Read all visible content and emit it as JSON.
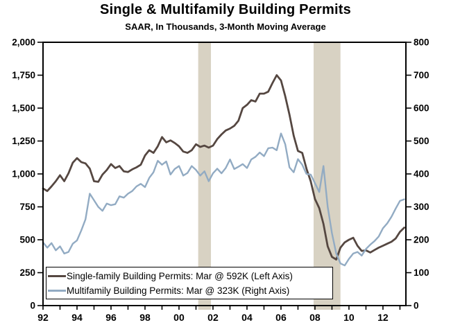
{
  "chart_data": {
    "type": "line",
    "title": "Single & Multifamily Building Permits",
    "subtitle": "SAAR, In Thousands, 3-Month Moving Average",
    "grid": false,
    "background": "#ffffff",
    "recession_band_color": "#d8d2c3",
    "recession_bands": [
      {
        "start": 2001.13,
        "end": 2001.88
      },
      {
        "start": 2007.92,
        "end": 2009.5
      }
    ],
    "x_range": [
      1992,
      2013.35
    ],
    "left_axis": {
      "min": 0,
      "max": 2000,
      "ticks": [
        {
          "v": 0,
          "label": "0"
        },
        {
          "v": 250,
          "label": "250"
        },
        {
          "v": 500,
          "label": "500"
        },
        {
          "v": 750,
          "label": "750"
        },
        {
          "v": 1000,
          "label": "1,000"
        },
        {
          "v": 1250,
          "label": "1,250"
        },
        {
          "v": 1500,
          "label": "1,500"
        },
        {
          "v": 1750,
          "label": "1,750"
        },
        {
          "v": 2000,
          "label": "2,000"
        }
      ]
    },
    "right_axis": {
      "min": 0,
      "max": 800,
      "ticks": [
        {
          "v": 0,
          "label": "0"
        },
        {
          "v": 100,
          "label": "100"
        },
        {
          "v": 200,
          "label": "200"
        },
        {
          "v": 300,
          "label": "300"
        },
        {
          "v": 400,
          "label": "400"
        },
        {
          "v": 500,
          "label": "500"
        },
        {
          "v": 600,
          "label": "600"
        },
        {
          "v": 700,
          "label": "700"
        },
        {
          "v": 800,
          "label": "800"
        }
      ]
    },
    "x_ticks": {
      "minor_every_year": true,
      "labels": [
        {
          "year": 1992,
          "label": "92"
        },
        {
          "year": 1994,
          "label": "94"
        },
        {
          "year": 1996,
          "label": "96"
        },
        {
          "year": 1998,
          "label": "98"
        },
        {
          "year": 2000,
          "label": "00"
        },
        {
          "year": 2002,
          "label": "02"
        },
        {
          "year": 2004,
          "label": "04"
        },
        {
          "year": 2006,
          "label": "06"
        },
        {
          "year": 2008,
          "label": "08"
        },
        {
          "year": 2010,
          "label": "10"
        },
        {
          "year": 2012,
          "label": "12"
        }
      ]
    },
    "series": [
      {
        "name": "Single-family Building Permits",
        "slug": "single-family-line",
        "axis": "left",
        "color": "#554741",
        "stroke_width": 2.8,
        "latest_label": "Mar @ 592K",
        "x_start": 1992,
        "x_step_years": 0.25,
        "values": [
          890,
          870,
          905,
          945,
          990,
          945,
          1005,
          1085,
          1120,
          1090,
          1080,
          1040,
          945,
          940,
          995,
          1030,
          1075,
          1045,
          1060,
          1020,
          1015,
          1035,
          1050,
          1070,
          1140,
          1180,
          1160,
          1210,
          1280,
          1240,
          1255,
          1235,
          1210,
          1170,
          1160,
          1180,
          1225,
          1205,
          1215,
          1200,
          1215,
          1265,
          1300,
          1330,
          1345,
          1365,
          1405,
          1500,
          1525,
          1560,
          1550,
          1610,
          1610,
          1625,
          1690,
          1750,
          1710,
          1590,
          1450,
          1290,
          1175,
          1160,
          1040,
          945,
          810,
          740,
          620,
          450,
          370,
          350,
          440,
          480,
          500,
          515,
          455,
          415,
          420,
          403,
          422,
          440,
          455,
          470,
          485,
          510,
          560,
          592
        ]
      },
      {
        "name": "Multifamily Building Permits",
        "slug": "multifamily-line",
        "axis": "right",
        "color": "#92abc3",
        "stroke_width": 2.4,
        "latest_label": "Mar @ 323K",
        "x_start": 1992,
        "x_step_years": 0.25,
        "values": [
          192,
          176,
          190,
          168,
          180,
          158,
          163,
          188,
          198,
          228,
          262,
          340,
          320,
          300,
          288,
          310,
          305,
          308,
          332,
          328,
          340,
          348,
          362,
          370,
          360,
          388,
          405,
          440,
          428,
          438,
          398,
          415,
          424,
          395,
          403,
          424,
          412,
          395,
          408,
          378,
          402,
          416,
          402,
          418,
          444,
          415,
          422,
          430,
          418,
          444,
          452,
          465,
          454,
          478,
          480,
          472,
          523,
          490,
          420,
          405,
          445,
          428,
          400,
          398,
          372,
          345,
          424,
          300,
          220,
          158,
          128,
          122,
          142,
          158,
          163,
          152,
          172,
          185,
          196,
          210,
          235,
          250,
          270,
          295,
          318,
          323
        ]
      }
    ],
    "legend": [
      {
        "label": "Single-family Building Permits: Mar @ 592K (Left Axis)"
      },
      {
        "label": "Multifamily Building Permits: Mar @ 323K (Right Axis)"
      }
    ]
  }
}
